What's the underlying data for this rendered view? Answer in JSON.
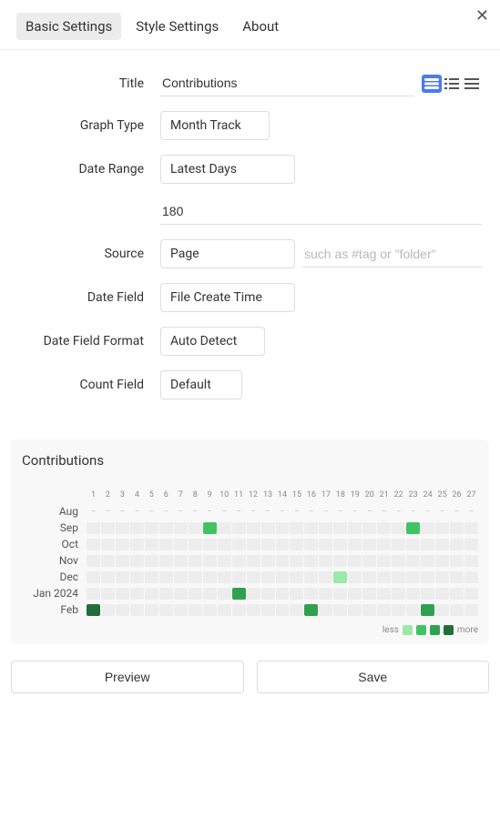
{
  "tabs": {
    "basic": "Basic Settings",
    "style": "Style Settings",
    "about": "About"
  },
  "form": {
    "title_label": "Title",
    "title_value": "Contributions",
    "graph_type_label": "Graph Type",
    "graph_type_value": "Month Track",
    "date_range_label": "Date Range",
    "date_range_value": "Latest Days",
    "date_range_days": "180",
    "source_label": "Source",
    "source_value": "Page",
    "source_placeholder": "such as #tag or \"folder\"",
    "date_field_label": "Date Field",
    "date_field_value": "File Create Time",
    "date_field_format_label": "Date Field Format",
    "date_field_format_value": "Auto Detect",
    "count_field_label": "Count Field",
    "count_field_value": "Default"
  },
  "chart": {
    "title": "Contributions",
    "colors": {
      "bg": "#f8f8f8",
      "cell_empty": "#ededed",
      "level1": "#9be9a8",
      "level2": "#40c463",
      "level3": "#30a14e",
      "level4": "#216e39"
    },
    "days": [
      "1",
      "2",
      "3",
      "4",
      "5",
      "6",
      "7",
      "8",
      "9",
      "10",
      "11",
      "12",
      "13",
      "14",
      "15",
      "16",
      "17",
      "18",
      "19",
      "20",
      "21",
      "22",
      "23",
      "24",
      "25",
      "26",
      "27"
    ],
    "months": [
      {
        "label": "Aug",
        "cells": [
          -1,
          -1,
          -1,
          -1,
          -1,
          -1,
          -1,
          -1,
          -1,
          -1,
          -1,
          -1,
          -1,
          -1,
          -1,
          -1,
          -1,
          -1,
          -1,
          -1,
          -1,
          -1,
          -1,
          -1,
          -1,
          -1,
          -1
        ]
      },
      {
        "label": "Sep",
        "cells": [
          0,
          0,
          0,
          0,
          0,
          0,
          0,
          0,
          2,
          0,
          0,
          0,
          0,
          0,
          0,
          0,
          0,
          0,
          0,
          0,
          0,
          0,
          2,
          0,
          0,
          0,
          0
        ]
      },
      {
        "label": "Oct",
        "cells": [
          0,
          0,
          0,
          0,
          0,
          0,
          0,
          0,
          0,
          0,
          0,
          0,
          0,
          0,
          0,
          0,
          0,
          0,
          0,
          0,
          0,
          0,
          0,
          0,
          0,
          0,
          0
        ]
      },
      {
        "label": "Nov",
        "cells": [
          0,
          0,
          0,
          0,
          0,
          0,
          0,
          0,
          0,
          0,
          0,
          0,
          0,
          0,
          0,
          0,
          0,
          0,
          0,
          0,
          0,
          0,
          0,
          0,
          0,
          0,
          0
        ]
      },
      {
        "label": "Dec",
        "cells": [
          0,
          0,
          0,
          0,
          0,
          0,
          0,
          0,
          0,
          0,
          0,
          0,
          0,
          0,
          0,
          0,
          0,
          1,
          0,
          0,
          0,
          0,
          0,
          0,
          0,
          0,
          0
        ]
      },
      {
        "label": "Jan 2024",
        "cells": [
          0,
          0,
          0,
          0,
          0,
          0,
          0,
          0,
          0,
          0,
          3,
          0,
          0,
          0,
          0,
          0,
          0,
          0,
          0,
          0,
          0,
          0,
          0,
          0,
          0,
          0,
          0
        ]
      },
      {
        "label": "Feb",
        "cells": [
          4,
          0,
          0,
          0,
          0,
          0,
          0,
          0,
          0,
          0,
          0,
          0,
          0,
          0,
          0,
          3,
          0,
          0,
          0,
          0,
          0,
          0,
          0,
          3,
          0,
          0,
          0
        ]
      }
    ],
    "legend_less": "less",
    "legend_more": "more"
  },
  "footer": {
    "preview": "Preview",
    "save": "Save"
  }
}
